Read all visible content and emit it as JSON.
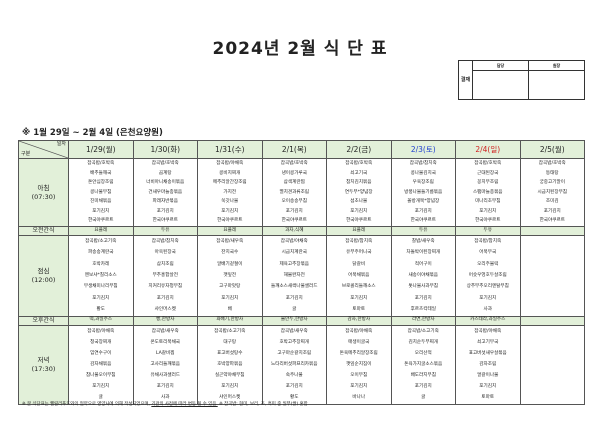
{
  "title": "2024년 2월 식 단 표",
  "approval": {
    "side": "결재",
    "col1": "담당",
    "col2": "원장"
  },
  "subtitle": "※ 1월 29일 ~ 2월 4일 (은천요양원)",
  "corner": {
    "top": "일자",
    "bottom": "구분"
  },
  "days": [
    {
      "label": "1/29(월)",
      "type": "weekday"
    },
    {
      "label": "1/30(화)",
      "type": "weekday"
    },
    {
      "label": "1/31(수)",
      "type": "weekday"
    },
    {
      "label": "2/1(목)",
      "type": "weekday"
    },
    {
      "label": "2/2(금)",
      "type": "weekday"
    },
    {
      "label": "2/3(토)",
      "type": "sat"
    },
    {
      "label": "2/4(일)",
      "type": "sun"
    },
    {
      "label": "2/5(월)",
      "type": "weekday"
    }
  ],
  "colors": {
    "header_bg": "#e2f0d9",
    "saturday": "#1f3fd0",
    "sunday": "#d02020"
  },
  "meals": [
    {
      "label": "아침\n(07:30)",
      "kind": "meal",
      "cells": [
        [
          "잡곡밥/호박죽",
          "배추들깨국",
          "돈안심장조림",
          "콩나물무침",
          "진미채볶음",
          "포기김치",
          "한국야쿠르트"
        ],
        [
          "잡곡밥/호박죽",
          "곰계탕",
          "너비아니채송이볶음",
          "건새우마늘종볶음",
          "파래자반볶음",
          "포기김치",
          "한국야쿠르트"
        ],
        [
          "잡곡밥/야채죽",
          "콩비지찌개",
          "메추리알간장조림",
          "가지전",
          "쑥갓나물",
          "포기김치",
          "한국야쿠르트"
        ],
        [
          "잡곡밥/호박죽",
          "냉이콩가루국",
          "삼색계란찜",
          "멸치견과류조림",
          "오이송송무침",
          "포기김치",
          "한국야쿠르트"
        ],
        [
          "잡곡밥/호박죽",
          "쇠고기국",
          "참치김치볶음",
          "연두부*양념장",
          "섬초나물",
          "포기김치",
          "한국야쿠르트"
        ],
        [
          "잡곡밥/참치죽",
          "콩나물김치국",
          "우육장조림",
          "방풍나물들기름볶음",
          "올방개묵*양념장",
          "포기김치",
          "한국야쿠르트"
        ],
        [
          "잡곡밥/호박죽",
          "근대된장국",
          "꽁치무조림",
          "스팸마늘종볶음",
          "미나리초무침",
          "포기김치",
          "한국야쿠르트"
        ],
        [
          "잡곡밥/호박죽",
          "동태탕",
          "궁중고기말이",
          "시금치된장무침",
          "조미김",
          "포기김치",
          "한국야쿠르트"
        ]
      ]
    },
    {
      "label": "오전간식",
      "kind": "snack",
      "cells": [
        "요플레",
        "두유",
        "요플레",
        "과자,식혜",
        "요플레",
        "두유",
        "두유",
        ""
      ]
    },
    {
      "label": "점심\n(12:00)",
      "kind": "meal",
      "cells": [
        [
          "잡곡밥/소고기죽",
          "파송송계란국",
          "호박카레",
          "멘보샤*칠리소스",
          "무생채미나리무침",
          "포기김치",
          "황도"
        ],
        [
          "잡곡밥/참치죽",
          "아욱된장국",
          "삼치조림",
          "부추홍합살전",
          "치커리유자청무침",
          "포기김치",
          "샤인머스켓"
        ],
        [
          "잡곡밥/새우죽",
          "잔치국수",
          "알배기겉절이",
          "깻잎전",
          "고구마맛탕",
          "포기김치",
          "배"
        ],
        [
          "잡곡밥/야채죽",
          "시금치계란국",
          "제육고추장볶음",
          "해물완자전",
          "들깨소스새싹나물샐러드",
          "포기김치",
          "귤"
        ],
        [
          "잡곡밥/참치죽",
          "유부주머니국",
          "닭갈비",
          "어묵채볶음",
          "브로콜리들깨소스",
          "포기김치",
          "토마토"
        ],
        [
          "찰밥/새우죽",
          "차돌박이된장찌개",
          "적어구이",
          "새송이야채볶음",
          "톳나물사과무침",
          "포기김치",
          "후르츠칵테일"
        ],
        [
          "잡곡밥/참치죽",
          "어묵무국",
          "오리주물럭",
          "어슷우엉호두살조림",
          "상추부추오리엔탈무침",
          "포기김치",
          "사과"
        ],
        []
      ]
    },
    {
      "label": "오후간식",
      "kind": "snack",
      "cells": [
        "떡,과일주스",
        "빵,한방차",
        "꽈배기,한방차",
        "물만두,한방차",
        "감자,한방차",
        "라면,한방차",
        "카스테라,과일주스",
        ""
      ]
    },
    {
      "label": "저녁\n(17:30)",
      "kind": "meal",
      "cells": [
        [
          "잡곡밥/야채죽",
          "청국장찌개",
          "임연수구이",
          "감자채볶음",
          "참나물오이무침",
          "포기김치",
          "귤"
        ],
        [
          "잡곡밥/새우죽",
          "온도토리묵채국",
          "LA갈비찜",
          "고사리들깨볶음",
          "유채사과샐러드",
          "포기김치",
          "사과"
        ],
        [
          "잡곡밥/소고기죽",
          "대구탕",
          "표고버섯탕수",
          "호박양파볶음",
          "실곤약야채무침",
          "포기김치",
          "샤인머스켓"
        ],
        [
          "잡곡밥/새우죽",
          "호박고추장찌개",
          "고구마순갈치조림",
          "느타리버섯파프리카볶음",
          "숙주나물",
          "포기김치",
          "황도"
        ],
        [
          "잡곡밥/야채죽",
          "매생이굴국",
          "돈육메추리알장조림",
          "깻잎순지짐이",
          "오이무침",
          "포기김치",
          "바나나"
        ],
        [
          "잡곡밥/소고기죽",
          "김치순두부찌개",
          "오리산적",
          "돈육가지굴소스볶음",
          "배도라지무침",
          "포기김치",
          "귤"
        ],
        [
          "잡곡밥/야채죽",
          "쇠고기무국",
          "표고버섯새우살볶음",
          "감자조림",
          "얼갈이나물",
          "포기김치",
          "토마토"
        ],
        []
      ]
    }
  ],
  "footnote": {
    "part1": "※ 본 식단표는 헬릴리푸드와의 협약으로 영양사에 의해 작성되었으며, ",
    "part2": "기관의 사정에 따라 변동 될 수 있음.",
    "part3": "  ※ 잡곡밥: 현미, 보리, 조, 흑미 중 일부(쌀) 혼합"
  }
}
